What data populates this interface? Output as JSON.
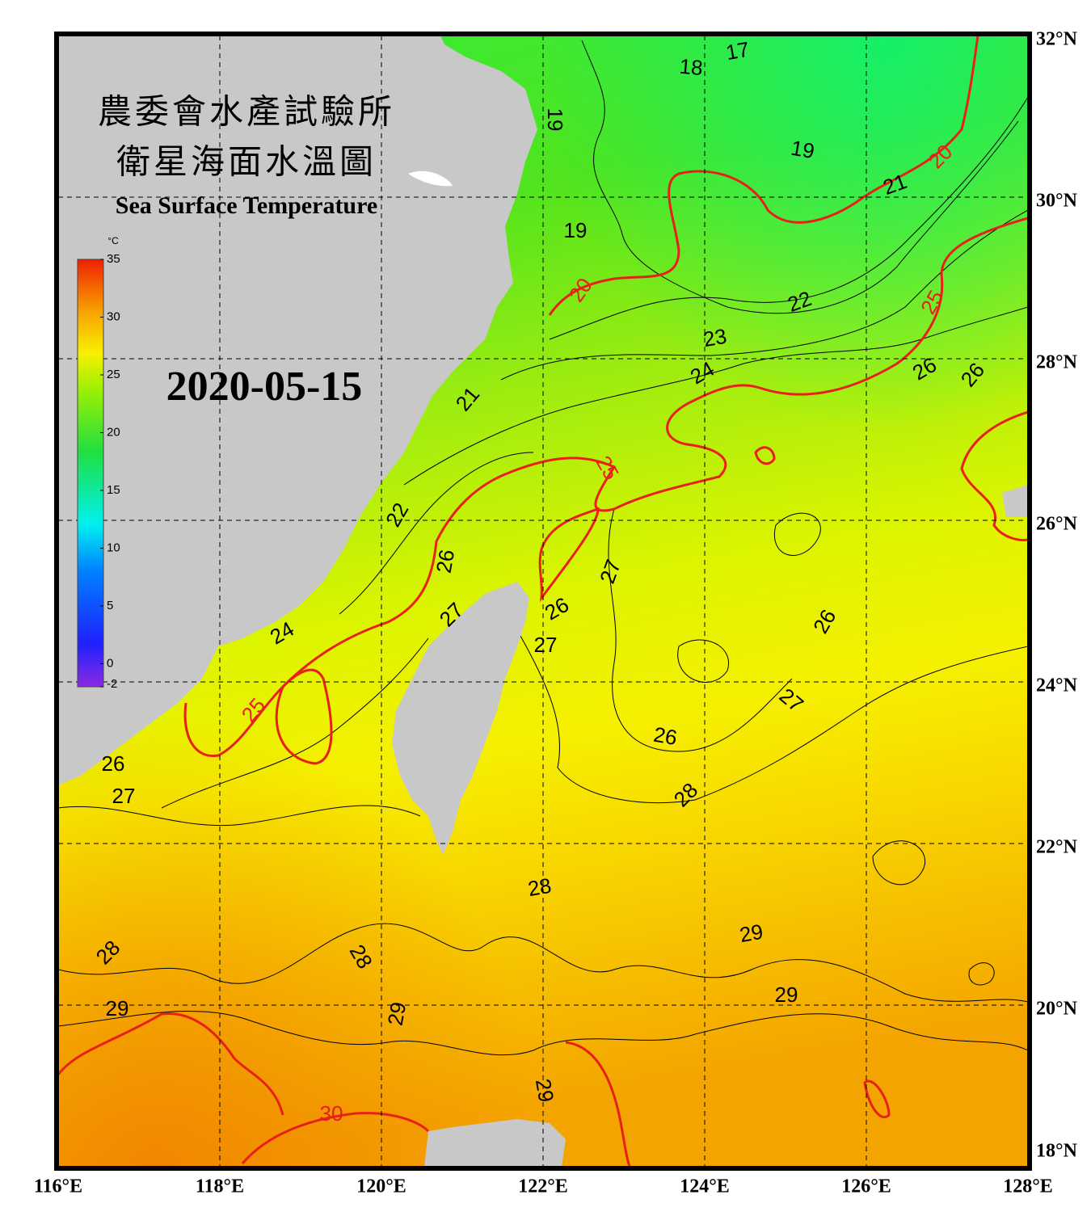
{
  "title_zh": "農委會水產試驗所",
  "subtitle_zh": "衛星海面水溫圖",
  "title_en": "Sea Surface Temperature",
  "date": "2020-05-15",
  "colorbar": {
    "unit": "°C",
    "range": [
      -2,
      35
    ],
    "ticks": [
      35,
      30,
      25,
      20,
      15,
      10,
      5,
      0,
      -2
    ]
  },
  "lon_range": [
    116,
    128
  ],
  "lat_range": [
    18,
    32
  ],
  "lon_ticks": [
    {
      "value": 116,
      "label": "116°E"
    },
    {
      "value": 118,
      "label": "118°E"
    },
    {
      "value": 120,
      "label": "120°E"
    },
    {
      "value": 122,
      "label": "122°E"
    },
    {
      "value": 124,
      "label": "124°E"
    },
    {
      "value": 126,
      "label": "126°E"
    },
    {
      "value": 128,
      "label": "128°E"
    }
  ],
  "lat_ticks": [
    {
      "value": 32,
      "label": "32°N"
    },
    {
      "value": 30,
      "label": "30°N"
    },
    {
      "value": 28,
      "label": "28°N"
    },
    {
      "value": 26,
      "label": "26°N"
    },
    {
      "value": 24,
      "label": "24°N"
    },
    {
      "value": 22,
      "label": "22°N"
    },
    {
      "value": 20,
      "label": "20°N"
    },
    {
      "value": 18,
      "label": "18°N"
    }
  ],
  "contour_labels": [
    17,
    18,
    19,
    19,
    20,
    21,
    19,
    20,
    22,
    23,
    25,
    24,
    26,
    26,
    21,
    25,
    22,
    26,
    27,
    26,
    27,
    24,
    27,
    26,
    27,
    25,
    26,
    26,
    27,
    28,
    28,
    29,
    28,
    28,
    29,
    29,
    29,
    30,
    29
  ]
}
